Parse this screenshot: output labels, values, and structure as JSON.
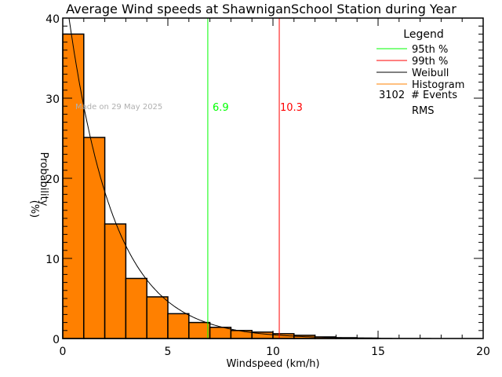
{
  "chart_data": {
    "type": "bar",
    "title": "Average Wind speeds at ShawniganSchool Station during Year",
    "xlabel": "Windspeed (km/h)",
    "ylabel": "Probability",
    "ylabel_unit": "(%)",
    "xlim": [
      0,
      20
    ],
    "ylim": [
      0,
      40
    ],
    "x_ticks": [
      "0",
      "5",
      "10",
      "15",
      "20"
    ],
    "y_ticks": [
      "0",
      "10",
      "20",
      "30",
      "40"
    ],
    "bin_edges": [
      0,
      1,
      2,
      3,
      4,
      5,
      6,
      7,
      8,
      9,
      10,
      11,
      12,
      13,
      14,
      15
    ],
    "values": [
      38.0,
      25.1,
      14.3,
      7.5,
      5.2,
      3.1,
      2.0,
      1.4,
      1.0,
      0.8,
      0.6,
      0.4,
      0.2,
      0.1,
      0.05
    ],
    "weibull": {
      "k": 1.0,
      "lambda": 2.18
    },
    "percentile_95": {
      "value": 6.9,
      "label": "6.9",
      "color": "#00ff00"
    },
    "percentile_99": {
      "value": 10.3,
      "label": "10.3",
      "color": "#ff0000"
    },
    "histogram_color": "#ff8000",
    "watermark": "Made on 29 May 2025",
    "legend": {
      "title": "Legend",
      "placement": "top-right",
      "entries": [
        {
          "label": "95th %",
          "color": "#00ff00"
        },
        {
          "label": "99th %",
          "color": "#ff0000"
        },
        {
          "label": "Weibull",
          "color": "#000000"
        },
        {
          "label": "Histogram",
          "color": "#ff8000"
        }
      ],
      "events_count": "3102",
      "events_label": "# Events",
      "rms_label": "RMS"
    }
  }
}
